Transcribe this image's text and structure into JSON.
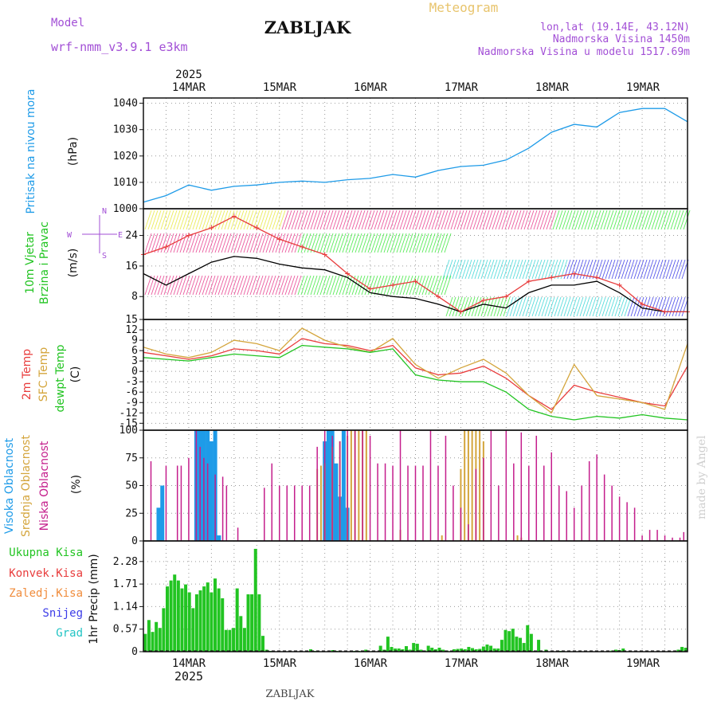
{
  "header": {
    "model_label": "Model",
    "model_name": "wrf-nmm_v3.9.1 e3km",
    "title": "ZABLJAK",
    "meteogram_label": "Meteogram",
    "coords": "lon,lat (19.14E, 43.12N)",
    "elevation": "Nadmorska Visina 1450m",
    "model_elevation": "Nadmorska Visina u modelu 1517.69m",
    "footer_title": "ZABLJAK",
    "watermark": "made by Angel"
  },
  "colors": {
    "pressure": "#1e9be8",
    "wind_speed": "#000000",
    "gust": "#e83c3c",
    "temp2m": "#e83c3c",
    "sfc_temp": "#d4a53c",
    "dewpt": "#22c422",
    "high_cloud": "#1e9be8",
    "mid_cloud": "#d4a53c",
    "low_cloud": "#c41e8c",
    "total_precip": "#22c422",
    "conv_precip": "#e83c3c",
    "frozen_precip": "#f08c3c",
    "snow": "#3c3ce8",
    "hail": "#22c4c4",
    "grid": "#999999"
  },
  "axis": {
    "year_top": "2025",
    "year_bottom": "2025",
    "days": [
      "14MAR",
      "15MAR",
      "16MAR",
      "17MAR",
      "18MAR",
      "19MAR"
    ]
  },
  "chart_data": [
    {
      "id": "pressure",
      "type": "line",
      "ylabel": "(hPa)",
      "side_labels": [
        "Pritisak na nivou mora"
      ],
      "ylim": [
        1000,
        1042
      ],
      "yticks": [
        1000,
        1010,
        1020,
        1030,
        1040
      ],
      "x_hours": [
        0,
        6,
        12,
        18,
        24,
        30,
        36,
        42,
        48,
        54,
        60,
        66,
        72,
        78,
        84,
        90,
        96,
        102,
        108,
        114,
        120,
        126,
        132,
        138,
        144
      ],
      "series": [
        {
          "name": "mslp",
          "values": [
            1002.5,
            1005,
            1009,
            1007,
            1008.5,
            1009,
            1010,
            1010.5,
            1010,
            1011,
            1011.5,
            1013,
            1012,
            1014.5,
            1016,
            1016.5,
            1018.5,
            1023,
            1029,
            1032,
            1031,
            1036.5,
            1038,
            1038,
            1033
          ]
        }
      ]
    },
    {
      "id": "wind",
      "type": "line",
      "ylabel": "(m/s)",
      "side_labels": [
        "10m Vjetar",
        "Brzina i Pravac"
      ],
      "compass": [
        "N",
        "E",
        "S",
        "W"
      ],
      "ylim": [
        2,
        31
      ],
      "yticks": [
        8,
        16,
        24
      ],
      "x_hours": [
        0,
        6,
        12,
        18,
        24,
        30,
        36,
        42,
        48,
        54,
        60,
        66,
        72,
        78,
        84,
        90,
        96,
        102,
        108,
        114,
        120,
        126,
        132,
        138,
        144
      ],
      "series": [
        {
          "name": "speed",
          "values": [
            14,
            11,
            14,
            17,
            18.5,
            18,
            16.5,
            15.5,
            15,
            13,
            9,
            8,
            7.5,
            6,
            4,
            6,
            5,
            9,
            11,
            11,
            12,
            9,
            5,
            4,
            4
          ]
        },
        {
          "name": "gust",
          "values": [
            19,
            21,
            24,
            26,
            29,
            26,
            23,
            21,
            19,
            14,
            10,
            11,
            12,
            8,
            4,
            7,
            8,
            12,
            13,
            14,
            13,
            11,
            6,
            4,
            4
          ]
        }
      ]
    },
    {
      "id": "temperature",
      "type": "line",
      "ylabel": "(C)",
      "side_labels": [
        "2m Temp",
        "SFC Temp",
        "dewpt Temp"
      ],
      "ylim": [
        -17,
        15
      ],
      "yticks": [
        -15,
        -12,
        -9,
        -6,
        -3,
        0,
        3,
        6,
        9,
        12,
        15
      ],
      "x_hours": [
        0,
        6,
        12,
        18,
        24,
        30,
        36,
        42,
        48,
        54,
        60,
        66,
        72,
        78,
        84,
        90,
        96,
        102,
        108,
        114,
        120,
        126,
        132,
        138,
        144
      ],
      "series": [
        {
          "name": "t2m",
          "values": [
            5.5,
            4.5,
            3.5,
            4.5,
            6.5,
            6,
            5,
            9.5,
            8,
            7.5,
            6,
            7.5,
            1,
            -1,
            -0.5,
            1.5,
            -2,
            -7,
            -11,
            -4,
            -6,
            -7.5,
            -9,
            -10,
            1.5
          ]
        },
        {
          "name": "sfc",
          "values": [
            7,
            5,
            4,
            5.5,
            9,
            8,
            6,
            12.5,
            9,
            7,
            5.5,
            9.5,
            2,
            -2,
            1,
            3.5,
            -0.5,
            -7,
            -12,
            2,
            -7,
            -8,
            -9,
            -11,
            8
          ]
        },
        {
          "name": "dewpt",
          "values": [
            4,
            3.5,
            3,
            4,
            5,
            4.5,
            4,
            7.5,
            7,
            6.5,
            5.5,
            6.5,
            -1,
            -2.5,
            -3,
            -3,
            -6,
            -11,
            -13,
            -14,
            -13,
            -13.5,
            -12.5,
            -13.5,
            -14
          ]
        }
      ]
    },
    {
      "id": "clouds",
      "type": "bar",
      "ylabel": "(%)",
      "side_labels": [
        "Visoka Oblacnost",
        "Srednja Oblacnost",
        "Niska Oblacnost"
      ],
      "ylim": [
        0,
        100
      ],
      "yticks": [
        0,
        25,
        50,
        75,
        100
      ],
      "series": [
        {
          "name": "high",
          "x_hours": [
            4,
            5,
            14,
            15,
            16,
            17,
            18,
            19,
            20,
            48,
            49,
            50,
            51,
            52,
            53,
            54
          ],
          "values": [
            30,
            50,
            100,
            100,
            100,
            100,
            90,
            100,
            5,
            90,
            100,
            100,
            70,
            40,
            100,
            30
          ]
        },
        {
          "name": "mid",
          "x_hours": [
            46,
            47,
            48,
            50,
            52,
            54,
            55,
            56,
            57,
            58,
            59,
            68,
            79,
            84,
            85,
            86,
            87,
            88,
            89,
            90,
            99,
            100
          ],
          "values": [
            65,
            68,
            70,
            85,
            90,
            95,
            100,
            100,
            100,
            100,
            100,
            10,
            5,
            65,
            100,
            100,
            100,
            100,
            100,
            90,
            5,
            3
          ]
        },
        {
          "name": "low",
          "x_hours": [
            2,
            6,
            9,
            10,
            12,
            14,
            15,
            16,
            17,
            19,
            21,
            22,
            25,
            32,
            34,
            36,
            38,
            40,
            42,
            44,
            46,
            48,
            50,
            52,
            54,
            56,
            58,
            60,
            62,
            64,
            66,
            68,
            70,
            72,
            74,
            76,
            78,
            80,
            82,
            84,
            86,
            88,
            90,
            92,
            94,
            96,
            98,
            100,
            102,
            104,
            106,
            108,
            110,
            112,
            114,
            116,
            118,
            120,
            122,
            124,
            126,
            128,
            130,
            132,
            134,
            136,
            138,
            140,
            142,
            143
          ],
          "values": [
            72,
            68,
            68,
            68,
            75,
            100,
            85,
            75,
            70,
            60,
            58,
            50,
            12,
            48,
            70,
            50,
            50,
            50,
            50,
            50,
            85,
            100,
            95,
            90,
            100,
            100,
            100,
            95,
            70,
            70,
            68,
            100,
            68,
            68,
            68,
            100,
            68,
            95,
            50,
            30,
            15,
            65,
            75,
            100,
            50,
            100,
            70,
            98,
            68,
            95,
            68,
            80,
            50,
            45,
            30,
            50,
            72,
            78,
            60,
            50,
            40,
            35,
            30,
            5,
            10,
            10,
            5,
            3,
            3,
            8
          ]
        }
      ]
    },
    {
      "id": "precip",
      "type": "bar",
      "ylabel": "1hr Precip (mm)",
      "side_labels": [
        "Ukupna Kisa",
        "Konvek.Kisa",
        "Zaledj.Kisa",
        "Snijeg",
        "Grad"
      ],
      "ylim": [
        0,
        2.8
      ],
      "yticks": [
        0,
        0.57,
        1.14,
        1.71,
        2.28
      ],
      "series": [
        {
          "name": "total",
          "values": [
            0.45,
            0.8,
            0.5,
            0.75,
            0.6,
            1.1,
            1.65,
            1.8,
            1.95,
            1.8,
            1.6,
            1.7,
            1.5,
            1.1,
            1.45,
            1.55,
            1.65,
            1.75,
            1.5,
            1.85,
            1.6,
            1.35,
            0.55,
            0.55,
            0.6,
            1.6,
            0.9,
            0.6,
            1.45,
            1.45,
            2.6,
            1.45,
            0.4,
            0.05,
            0.02,
            0,
            0,
            0,
            0,
            0,
            0,
            0,
            0,
            0,
            0,
            0.06,
            0.02,
            0,
            0,
            0,
            0,
            0.04,
            0.02,
            0,
            0,
            0,
            0,
            0.02,
            0.02,
            0,
            0.05,
            0,
            0.02,
            0,
            0.15,
            0.05,
            0.38,
            0.12,
            0.08,
            0.08,
            0.06,
            0.14,
            0.05,
            0.22,
            0.2,
            0.05,
            0.03,
            0.15,
            0.1,
            0.06,
            0.1,
            0.05,
            0.03,
            0.01,
            0.06,
            0.07,
            0.08,
            0.06,
            0.12,
            0.09,
            0.06,
            0.07,
            0.13,
            0.18,
            0.15,
            0.08,
            0.08,
            0.3,
            0.55,
            0.52,
            0.58,
            0.38,
            0.35,
            0.22,
            0.67,
            0.45,
            0.02,
            0.3,
            0,
            0.05,
            0,
            0,
            0,
            0.02,
            0,
            0,
            0,
            0,
            0,
            0,
            0,
            0,
            0,
            0,
            0,
            0,
            0,
            0.03,
            0.05,
            0.04,
            0.08,
            0,
            0,
            0,
            0,
            0,
            0,
            0,
            0,
            0,
            0,
            0,
            0,
            0,
            0,
            0.05,
            0.12,
            0.1
          ]
        }
      ]
    }
  ]
}
